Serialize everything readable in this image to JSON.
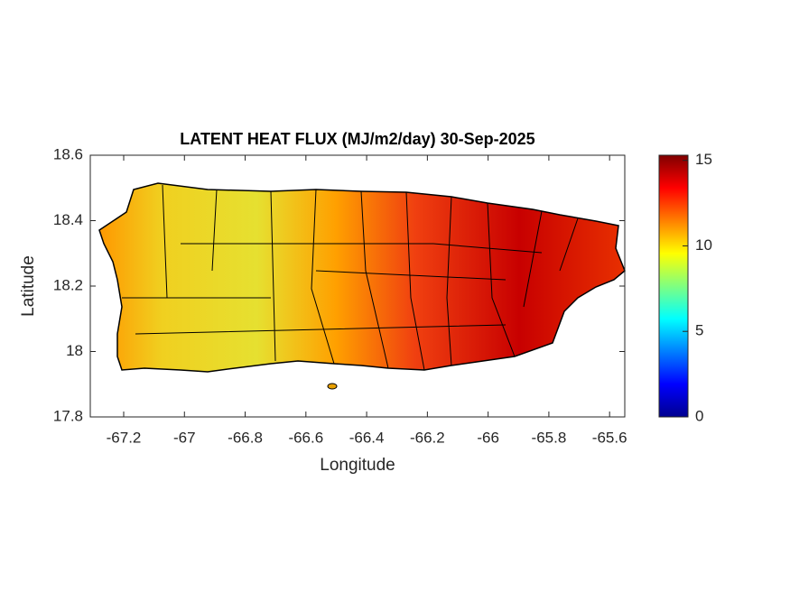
{
  "chart_data": {
    "type": "heatmap",
    "title": "LATENT HEAT FLUX (MJ/m2/day) 30-Sep-2025",
    "xlabel": "Longitude",
    "ylabel": "Latitude",
    "xlim": [
      -67.31,
      -65.55
    ],
    "xticks": [
      -67.2,
      -67,
      -66.8,
      -66.6,
      -66.4,
      -66.2,
      -66,
      -65.8,
      -65.6
    ],
    "ylim": [
      17.8,
      18.6
    ],
    "yticks": [
      17.8,
      18,
      18.2,
      18.4,
      18.6
    ],
    "colorbar": {
      "colormap": "jet",
      "clim": [
        0,
        15.3
      ],
      "ticks": [
        0,
        5,
        10,
        15
      ]
    }
  }
}
